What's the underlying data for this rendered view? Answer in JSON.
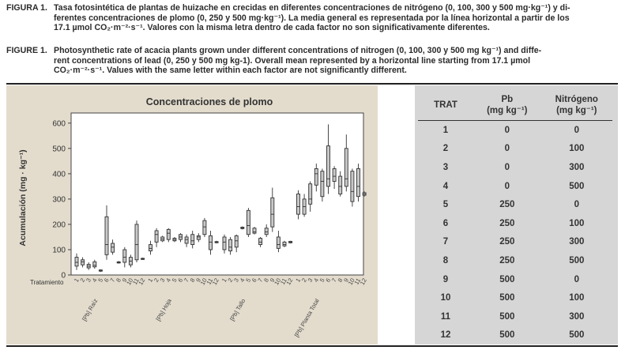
{
  "caption_es": {
    "label": "FIGURA 1.",
    "line1": "Tasa fotosintética de plantas de huizache en crecidas en diferentes concentraciones de nitrógeno  (0, 100, 300 y 500 mg·kg⁻¹) y di-",
    "line2": "ferentes concentraciones de plomo (0, 250 y 500 mg·kg⁻¹). La media general es representada por la línea horizontal a partir de los",
    "line3": "17.1 µmol CO₂·m⁻²·s⁻¹. Valores con la misma letra dentro de cada factor no son significativamente diferentes."
  },
  "caption_en": {
    "label": "FIGURE 1.",
    "line1": "Photosynthetic rate of acacia plants grown under different concentrations of nitrogen (0, 100, 300 y 500 mg kg⁻¹) and diffe-",
    "line2": "rent concentrations of lead (0, 250 y 500 mg kg-1). Overall mean represented by a horizontal line starting from  17.1 µmol",
    "line3": "CO₂·m⁻²·s⁻¹. Values with the same letter within each factor are not significantly different."
  },
  "chart_data": {
    "type": "boxplot",
    "title": "Concentraciones de plomo",
    "ylabel": "Acumulación (mg · kg⁻¹)",
    "xlabel": "Tratamiento",
    "ylim": [
      0,
      640
    ],
    "yticks": [
      0,
      100,
      200,
      300,
      400,
      500,
      600
    ],
    "tick_labels": [
      "1",
      "2",
      "3",
      "4",
      "5",
      "6",
      "7",
      "8",
      "9",
      "10",
      "11",
      "12"
    ],
    "grid": false,
    "legend": "none",
    "colors": {
      "box_fill": "#c9c9c9",
      "box_stroke": "#333333",
      "panel": "#e3dccd",
      "plot_bg": "#ffffff"
    },
    "groups": [
      {
        "label": "[Pb] Raíz",
        "boxes": [
          {
            "t": "1",
            "min": 20,
            "q1": 35,
            "med": 50,
            "q3": 70,
            "max": 85
          },
          {
            "t": "2",
            "min": 30,
            "q1": 40,
            "med": 52,
            "q3": 60,
            "max": 70
          },
          {
            "t": "3",
            "min": 20,
            "q1": 28,
            "med": 35,
            "q3": 42,
            "max": 50
          },
          {
            "t": "4",
            "min": 25,
            "q1": 32,
            "med": 38,
            "q3": 52,
            "max": 60
          },
          {
            "t": "5",
            "min": 12,
            "q1": 15,
            "med": 18,
            "q3": 20,
            "max": 22
          },
          {
            "t": "6",
            "min": 60,
            "q1": 80,
            "med": 120,
            "q3": 230,
            "max": 275
          },
          {
            "t": "7",
            "min": 80,
            "q1": 90,
            "med": 110,
            "q3": 125,
            "max": 140
          },
          {
            "t": "8",
            "min": 45,
            "q1": 48,
            "med": 50,
            "q3": 52,
            "max": 55
          },
          {
            "t": "9",
            "min": 30,
            "q1": 50,
            "med": 70,
            "q3": 100,
            "max": 110
          },
          {
            "t": "10",
            "min": 30,
            "q1": 40,
            "med": 55,
            "q3": 70,
            "max": 80
          },
          {
            "t": "11",
            "min": 50,
            "q1": 60,
            "med": 120,
            "q3": 200,
            "max": 215
          },
          {
            "t": "12",
            "min": 60,
            "q1": 62,
            "med": 64,
            "q3": 66,
            "max": 68
          }
        ]
      },
      {
        "label": "[Pb] Hoja",
        "boxes": [
          {
            "t": "1",
            "min": 80,
            "q1": 95,
            "med": 105,
            "q3": 120,
            "max": 135
          },
          {
            "t": "2",
            "min": 110,
            "q1": 130,
            "med": 160,
            "q3": 175,
            "max": 185
          },
          {
            "t": "3",
            "min": 130,
            "q1": 135,
            "med": 142,
            "q3": 150,
            "max": 155
          },
          {
            "t": "4",
            "min": 130,
            "q1": 140,
            "med": 165,
            "q3": 180,
            "max": 185
          },
          {
            "t": "5",
            "min": 130,
            "q1": 135,
            "med": 140,
            "q3": 145,
            "max": 150
          },
          {
            "t": "6",
            "min": 130,
            "q1": 140,
            "med": 150,
            "q3": 160,
            "max": 165
          },
          {
            "t": "7",
            "min": 110,
            "q1": 125,
            "med": 140,
            "q3": 150,
            "max": 160
          },
          {
            "t": "8",
            "min": 105,
            "q1": 120,
            "med": 135,
            "q3": 160,
            "max": 175
          },
          {
            "t": "9",
            "min": 130,
            "q1": 140,
            "med": 150,
            "q3": 155,
            "max": 165
          },
          {
            "t": "10",
            "min": 150,
            "q1": 160,
            "med": 190,
            "q3": 215,
            "max": 225
          },
          {
            "t": "11",
            "min": 80,
            "q1": 100,
            "med": 130,
            "q3": 155,
            "max": 175
          },
          {
            "t": "12",
            "min": 125,
            "q1": 128,
            "med": 130,
            "q3": 132,
            "max": 135
          }
        ]
      },
      {
        "label": "[Pb] Tallo",
        "boxes": [
          {
            "t": "1",
            "min": 85,
            "q1": 100,
            "med": 130,
            "q3": 150,
            "max": 160
          },
          {
            "t": "2",
            "min": 80,
            "q1": 95,
            "med": 110,
            "q3": 140,
            "max": 150
          },
          {
            "t": "3",
            "min": 90,
            "q1": 110,
            "med": 135,
            "q3": 155,
            "max": 160
          },
          {
            "t": "4",
            "min": 180,
            "q1": 183,
            "med": 186,
            "q3": 189,
            "max": 192
          },
          {
            "t": "5",
            "min": 150,
            "q1": 160,
            "med": 195,
            "q3": 255,
            "max": 265
          },
          {
            "t": "6",
            "min": 160,
            "q1": 165,
            "med": 170,
            "q3": 185,
            "max": 190
          },
          {
            "t": "7",
            "min": 110,
            "q1": 120,
            "med": 130,
            "q3": 145,
            "max": 150
          },
          {
            "t": "8",
            "min": 150,
            "q1": 160,
            "med": 170,
            "q3": 185,
            "max": 200
          },
          {
            "t": "9",
            "min": 170,
            "q1": 190,
            "med": 240,
            "q3": 305,
            "max": 345
          },
          {
            "t": "10",
            "min": 90,
            "q1": 105,
            "med": 120,
            "q3": 150,
            "max": 175
          },
          {
            "t": "11",
            "min": 110,
            "q1": 115,
            "med": 120,
            "q3": 130,
            "max": 135
          },
          {
            "t": "12",
            "min": 125,
            "q1": 127,
            "med": 130,
            "q3": 133,
            "max": 135
          }
        ]
      },
      {
        "label": "[Pb] Planta Total",
        "boxes": [
          {
            "t": "1",
            "min": 220,
            "q1": 240,
            "med": 270,
            "q3": 320,
            "max": 335
          },
          {
            "t": "2",
            "min": 230,
            "q1": 240,
            "med": 270,
            "q3": 300,
            "max": 320
          },
          {
            "t": "3",
            "min": 250,
            "q1": 280,
            "med": 300,
            "q3": 360,
            "max": 370
          },
          {
            "t": "4",
            "min": 330,
            "q1": 355,
            "med": 400,
            "q3": 420,
            "max": 440
          },
          {
            "t": "5",
            "min": 290,
            "q1": 310,
            "med": 370,
            "q3": 410,
            "max": 420
          },
          {
            "t": "6",
            "min": 320,
            "q1": 350,
            "med": 380,
            "q3": 510,
            "max": 595
          },
          {
            "t": "7",
            "min": 340,
            "q1": 370,
            "med": 390,
            "q3": 420,
            "max": 430
          },
          {
            "t": "8",
            "min": 310,
            "q1": 320,
            "med": 350,
            "q3": 390,
            "max": 410
          },
          {
            "t": "9",
            "min": 330,
            "q1": 350,
            "med": 380,
            "q3": 500,
            "max": 555
          },
          {
            "t": "10",
            "min": 270,
            "q1": 290,
            "med": 330,
            "q3": 410,
            "max": 420
          },
          {
            "t": "11",
            "min": 290,
            "q1": 310,
            "med": 350,
            "q3": 420,
            "max": 440
          },
          {
            "t": "12",
            "min": 310,
            "q1": 315,
            "med": 320,
            "q3": 325,
            "max": 330
          }
        ]
      }
    ]
  },
  "table": {
    "headers": {
      "trat": "TRAT",
      "pb": "Pb",
      "pb_unit": "(mg kg⁻¹)",
      "n": "Nitrógeno",
      "n_unit": "(mg kg⁻¹)"
    },
    "rows": [
      {
        "trat": "1",
        "pb": "0",
        "n": "0"
      },
      {
        "trat": "2",
        "pb": "0",
        "n": "100"
      },
      {
        "trat": "3",
        "pb": "0",
        "n": "300"
      },
      {
        "trat": "4",
        "pb": "0",
        "n": "500"
      },
      {
        "trat": "5",
        "pb": "250",
        "n": "0"
      },
      {
        "trat": "6",
        "pb": "250",
        "n": "100"
      },
      {
        "trat": "7",
        "pb": "250",
        "n": "300"
      },
      {
        "trat": "8",
        "pb": "250",
        "n": "500"
      },
      {
        "trat": "9",
        "pb": "500",
        "n": "0"
      },
      {
        "trat": "10",
        "pb": "500",
        "n": "100"
      },
      {
        "trat": "11",
        "pb": "500",
        "n": "300"
      },
      {
        "trat": "12",
        "pb": "500",
        "n": "500"
      }
    ]
  }
}
